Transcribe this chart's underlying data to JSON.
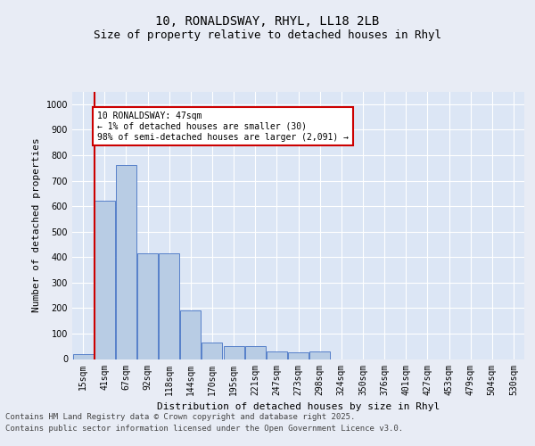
{
  "title_line1": "10, RONALDSWAY, RHYL, LL18 2LB",
  "title_line2": "Size of property relative to detached houses in Rhyl",
  "xlabel": "Distribution of detached houses by size in Rhyl",
  "ylabel": "Number of detached properties",
  "bin_labels": [
    "15sqm",
    "41sqm",
    "67sqm",
    "92sqm",
    "118sqm",
    "144sqm",
    "170sqm",
    "195sqm",
    "221sqm",
    "247sqm",
    "273sqm",
    "298sqm",
    "324sqm",
    "350sqm",
    "376sqm",
    "401sqm",
    "427sqm",
    "453sqm",
    "479sqm",
    "504sqm",
    "530sqm"
  ],
  "bar_values": [
    20,
    620,
    760,
    415,
    415,
    190,
    65,
    50,
    50,
    30,
    25,
    30,
    0,
    0,
    0,
    0,
    0,
    0,
    0,
    0,
    0
  ],
  "bar_color": "#b8cce4",
  "bar_edge_color": "#4472c4",
  "vline_color": "#cc0000",
  "annotation_text": "10 RONALDSWAY: 47sqm\n← 1% of detached houses are smaller (30)\n98% of semi-detached houses are larger (2,091) →",
  "annotation_box_color": "#cc0000",
  "ylim": [
    0,
    1050
  ],
  "yticks": [
    0,
    100,
    200,
    300,
    400,
    500,
    600,
    700,
    800,
    900,
    1000
  ],
  "bg_color": "#e8ecf5",
  "plot_bg_color": "#dce6f5",
  "footer_line1": "Contains HM Land Registry data © Crown copyright and database right 2025.",
  "footer_line2": "Contains public sector information licensed under the Open Government Licence v3.0.",
  "grid_color": "#ffffff",
  "title_fontsize": 10,
  "subtitle_fontsize": 9,
  "axis_label_fontsize": 8,
  "tick_fontsize": 7,
  "footer_fontsize": 6.5
}
